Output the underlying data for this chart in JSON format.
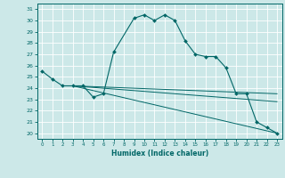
{
  "xlabel": "Humidex (Indice chaleur)",
  "bg_color": "#cce8e8",
  "grid_color": "#ffffff",
  "line_color": "#006666",
  "xlim": [
    -0.5,
    23.5
  ],
  "ylim": [
    19.5,
    31.5
  ],
  "yticks": [
    20,
    21,
    22,
    23,
    24,
    25,
    26,
    27,
    28,
    29,
    30,
    31
  ],
  "xticks": [
    0,
    1,
    2,
    3,
    4,
    5,
    6,
    7,
    8,
    9,
    10,
    11,
    12,
    13,
    14,
    15,
    16,
    17,
    18,
    19,
    20,
    21,
    22,
    23
  ],
  "series": [
    {
      "x": [
        0,
        1,
        2,
        3,
        4,
        5,
        6,
        7,
        9,
        10,
        11,
        12,
        13,
        14,
        15,
        16,
        17,
        18,
        19,
        20,
        21,
        22,
        23
      ],
      "y": [
        25.5,
        24.8,
        24.2,
        24.2,
        24.2,
        23.2,
        23.5,
        27.2,
        30.2,
        30.5,
        30.0,
        30.5,
        30.0,
        28.2,
        27.0,
        26.8,
        26.8,
        25.8,
        23.5,
        23.5,
        21.0,
        20.5,
        20.0
      ],
      "marker": "D",
      "markersize": 2
    },
    {
      "x": [
        3,
        23
      ],
      "y": [
        24.2,
        23.5
      ],
      "marker": null
    },
    {
      "x": [
        3,
        23
      ],
      "y": [
        24.2,
        22.8
      ],
      "marker": null
    },
    {
      "x": [
        3,
        23
      ],
      "y": [
        24.2,
        20.0
      ],
      "marker": null
    }
  ]
}
